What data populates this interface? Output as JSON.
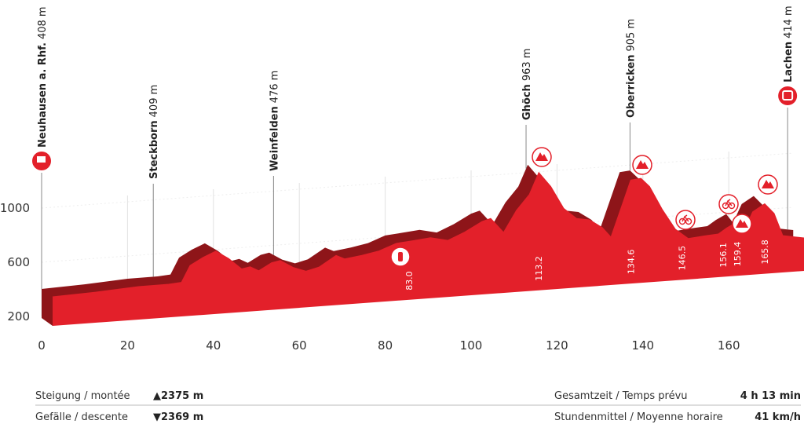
{
  "chart_data": {
    "type": "area",
    "x": [
      0,
      10,
      20,
      27,
      30,
      32,
      35,
      38,
      41,
      44,
      46,
      48,
      51,
      53,
      56,
      59,
      62,
      66,
      68,
      72,
      76,
      80,
      84,
      88,
      92,
      96,
      100,
      102,
      105,
      108,
      111,
      113.2,
      116,
      119,
      122,
      125,
      128,
      130,
      133,
      134.6,
      137,
      139,
      142,
      145,
      148,
      152,
      155,
      157,
      159.4,
      161,
      163,
      165.8,
      168,
      170,
      173,
      175
    ],
    "values": [
      403,
      414,
      432,
      433,
      440,
      560,
      612,
      652,
      590,
      507,
      518,
      484,
      536,
      548,
      490,
      455,
      478,
      555,
      525,
      542,
      565,
      612,
      623,
      635,
      606,
      659,
      727,
      745,
      635,
      791,
      901,
      1058,
      948,
      780,
      698,
      681,
      617,
      542,
      809,
      953,
      960,
      895,
      716,
      566,
      490,
      501,
      507,
      548,
      586,
      518,
      652,
      705,
      629,
      461,
      443,
      432
    ],
    "color": "#e3202a",
    "shade_color": "#8e1519",
    "xlim": [
      0,
      175
    ],
    "xticks": [
      0,
      20,
      40,
      60,
      80,
      100,
      120,
      140,
      160
    ],
    "ylim": [
      200,
      1000
    ],
    "yticks": [
      200,
      600,
      1000
    ],
    "grid": true,
    "places": [
      {
        "name": "Neuhausen a. Rhf.",
        "elevation": "408 m",
        "km": 0,
        "icon": "start"
      },
      {
        "name": "Steckborn",
        "elevation": "409 m",
        "km": 26
      },
      {
        "name": "Weinfelden",
        "elevation": "476 m",
        "km": 54
      },
      {
        "name": "Ghöch",
        "elevation": "963 m",
        "km": 112.8
      },
      {
        "name": "Oberricken",
        "elevation": "905 m",
        "km": 137
      },
      {
        "name": "Lachen",
        "elevation": "414 m",
        "km": 173.7,
        "icon": "finish"
      }
    ],
    "markers": [
      {
        "km": 83.0,
        "label": "83.0",
        "icon": "feed"
      },
      {
        "km": 113.2,
        "label": "113.2",
        "icon": "climb"
      },
      {
        "km": 134.6,
        "label": "134.6",
        "icon": "climb"
      },
      {
        "km": 146.5,
        "label": "146.5",
        "icon": "sprint"
      },
      {
        "km": 156.1,
        "label": "156.1",
        "icon": "sprint"
      },
      {
        "km": 159.4,
        "label": "159.4",
        "icon": "climb"
      },
      {
        "km": 165.8,
        "label": "165.8",
        "icon": "climb"
      }
    ],
    "stats": [
      {
        "label": "Steigung / montée",
        "value": "▲2375 m"
      },
      {
        "label": "Gefälle / descente",
        "value": "▼2369 m"
      },
      {
        "label": "Gesamtzeit / Temps prévu",
        "value": "4 h 13 min"
      },
      {
        "label": "Stundenmittel / Moyenne horaire",
        "value": "41 km/h"
      }
    ]
  }
}
